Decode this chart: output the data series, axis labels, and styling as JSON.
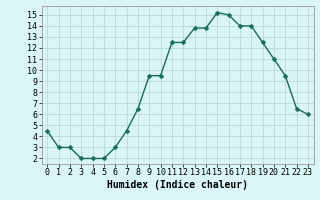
{
  "x": [
    0,
    1,
    2,
    3,
    4,
    5,
    6,
    7,
    8,
    9,
    10,
    11,
    12,
    13,
    14,
    15,
    16,
    17,
    18,
    19,
    20,
    21,
    22,
    23
  ],
  "y": [
    4.5,
    3.0,
    3.0,
    2.0,
    2.0,
    2.0,
    3.0,
    4.5,
    6.5,
    9.5,
    9.5,
    12.5,
    12.5,
    13.8,
    13.8,
    15.2,
    15.0,
    14.0,
    14.0,
    12.5,
    11.0,
    9.5,
    6.5,
    6.0
  ],
  "line_color": "#1a6b5e",
  "marker": "D",
  "marker_size": 2.5,
  "bg_color": "#d9f5f5",
  "grid_color": "#b8dada",
  "xlabel": "Humidex (Indice chaleur)",
  "xlim": [
    -0.5,
    23.5
  ],
  "ylim": [
    1.5,
    15.8
  ],
  "yticks": [
    2,
    3,
    4,
    5,
    6,
    7,
    8,
    9,
    10,
    11,
    12,
    13,
    14,
    15
  ],
  "xticks": [
    0,
    1,
    2,
    3,
    4,
    5,
    6,
    7,
    8,
    9,
    10,
    11,
    12,
    13,
    14,
    15,
    16,
    17,
    18,
    19,
    20,
    21,
    22,
    23
  ],
  "xlabel_fontsize": 7,
  "tick_fontsize": 6
}
